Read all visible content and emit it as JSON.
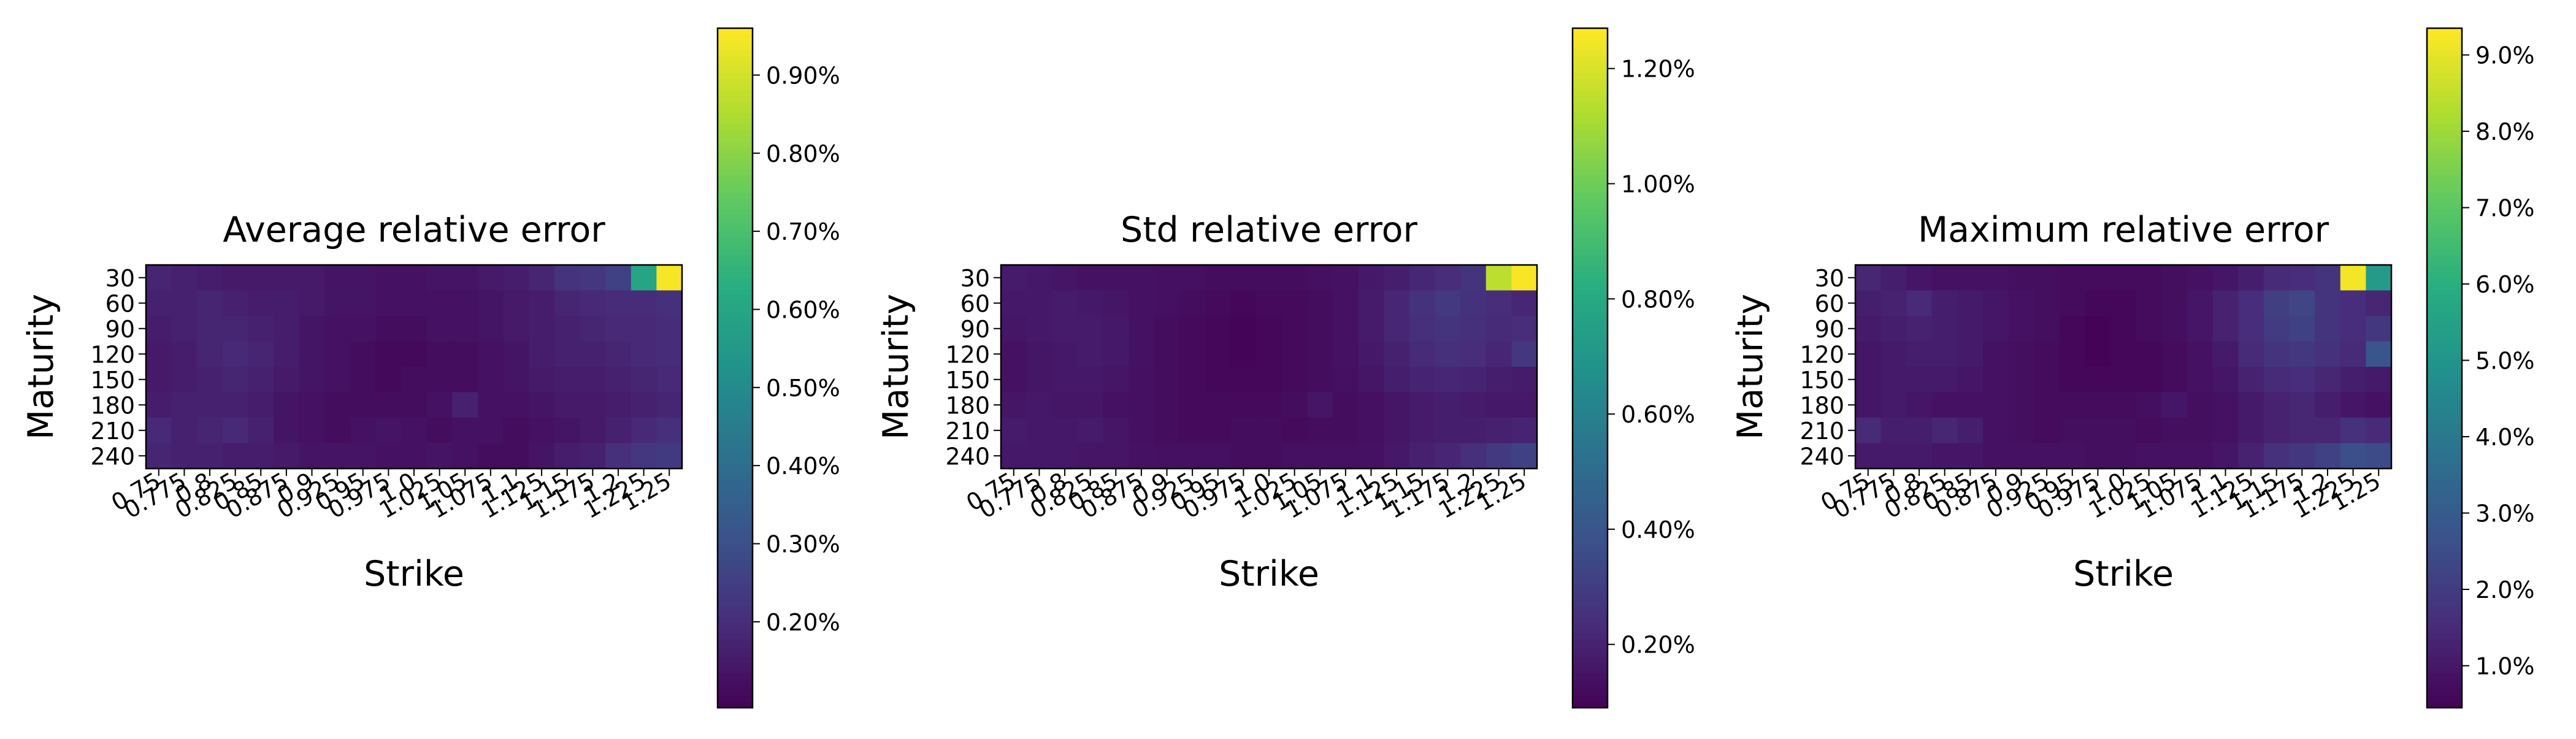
{
  "colormap": [
    "#440154",
    "#472c7a",
    "#3b518b",
    "#2c718e",
    "#21918c",
    "#28ae80",
    "#5ec962",
    "#addc30",
    "#fde725"
  ],
  "chart_data": [
    {
      "type": "heatmap",
      "title": "Average relative error",
      "xlabel": "Strike",
      "ylabel": "Maturity",
      "x": [
        "0.75",
        "0.775",
        "0.8",
        "0.825",
        "0.85",
        "0.875",
        "0.9",
        "0.925",
        "0.95",
        "0.975",
        "1.0",
        "1.025",
        "1.05",
        "1.075",
        "1.1",
        "1.125",
        "1.15",
        "1.175",
        "1.2",
        "1.225",
        "1.25"
      ],
      "y": [
        "30",
        "60",
        "90",
        "120",
        "150",
        "180",
        "210",
        "240"
      ],
      "values": [
        [
          0.18,
          0.17,
          0.16,
          0.15,
          0.15,
          0.15,
          0.15,
          0.14,
          0.14,
          0.13,
          0.13,
          0.14,
          0.14,
          0.15,
          0.16,
          0.18,
          0.22,
          0.23,
          0.26,
          0.6,
          0.95
        ],
        [
          0.17,
          0.17,
          0.18,
          0.17,
          0.16,
          0.16,
          0.15,
          0.14,
          0.14,
          0.13,
          0.13,
          0.13,
          0.13,
          0.14,
          0.15,
          0.16,
          0.18,
          0.19,
          0.2,
          0.2,
          0.21
        ],
        [
          0.16,
          0.17,
          0.18,
          0.18,
          0.17,
          0.16,
          0.14,
          0.13,
          0.13,
          0.12,
          0.12,
          0.13,
          0.13,
          0.14,
          0.15,
          0.16,
          0.17,
          0.18,
          0.19,
          0.19,
          0.2
        ],
        [
          0.15,
          0.16,
          0.18,
          0.19,
          0.18,
          0.16,
          0.14,
          0.13,
          0.12,
          0.11,
          0.11,
          0.12,
          0.12,
          0.13,
          0.14,
          0.16,
          0.17,
          0.17,
          0.18,
          0.19,
          0.2
        ],
        [
          0.15,
          0.16,
          0.17,
          0.18,
          0.17,
          0.15,
          0.14,
          0.13,
          0.12,
          0.11,
          0.12,
          0.12,
          0.12,
          0.13,
          0.14,
          0.15,
          0.16,
          0.16,
          0.17,
          0.18,
          0.19
        ],
        [
          0.16,
          0.17,
          0.17,
          0.17,
          0.16,
          0.14,
          0.13,
          0.12,
          0.12,
          0.12,
          0.12,
          0.13,
          0.17,
          0.13,
          0.13,
          0.14,
          0.15,
          0.15,
          0.16,
          0.17,
          0.18
        ],
        [
          0.19,
          0.17,
          0.18,
          0.19,
          0.17,
          0.14,
          0.13,
          0.12,
          0.13,
          0.14,
          0.13,
          0.12,
          0.13,
          0.13,
          0.12,
          0.13,
          0.14,
          0.15,
          0.17,
          0.19,
          0.21
        ],
        [
          0.18,
          0.17,
          0.17,
          0.16,
          0.16,
          0.15,
          0.14,
          0.14,
          0.14,
          0.13,
          0.13,
          0.14,
          0.13,
          0.12,
          0.12,
          0.14,
          0.16,
          0.17,
          0.21,
          0.23,
          0.24
        ]
      ],
      "vmin": 0.09,
      "vmax": 0.96,
      "colorbar_ticks": [
        "0.20%",
        "0.30%",
        "0.40%",
        "0.50%",
        "0.60%",
        "0.70%",
        "0.80%",
        "0.90%"
      ],
      "colorbar_tick_values": [
        0.2,
        0.3,
        0.4,
        0.5,
        0.6,
        0.7,
        0.8,
        0.9
      ]
    },
    {
      "type": "heatmap",
      "title": "Std relative error",
      "xlabel": "Strike",
      "ylabel": "Maturity",
      "x": [
        "0.75",
        "0.775",
        "0.8",
        "0.825",
        "0.85",
        "0.875",
        "0.9",
        "0.925",
        "0.95",
        "0.975",
        "1.0",
        "1.025",
        "1.05",
        "1.075",
        "1.1",
        "1.125",
        "1.15",
        "1.175",
        "1.2",
        "1.225",
        "1.25"
      ],
      "y": [
        "30",
        "60",
        "90",
        "120",
        "150",
        "180",
        "210",
        "240"
      ],
      "values": [
        [
          0.18,
          0.17,
          0.16,
          0.15,
          0.15,
          0.15,
          0.14,
          0.14,
          0.13,
          0.13,
          0.13,
          0.13,
          0.14,
          0.15,
          0.17,
          0.19,
          0.22,
          0.24,
          0.27,
          1.15,
          1.26
        ],
        [
          0.17,
          0.17,
          0.18,
          0.17,
          0.16,
          0.15,
          0.14,
          0.13,
          0.12,
          0.11,
          0.12,
          0.12,
          0.13,
          0.15,
          0.18,
          0.22,
          0.26,
          0.29,
          0.26,
          0.24,
          0.22
        ],
        [
          0.16,
          0.17,
          0.18,
          0.18,
          0.17,
          0.15,
          0.13,
          0.12,
          0.11,
          0.1,
          0.11,
          0.12,
          0.13,
          0.15,
          0.18,
          0.22,
          0.25,
          0.27,
          0.25,
          0.23,
          0.24
        ],
        [
          0.15,
          0.16,
          0.17,
          0.18,
          0.17,
          0.15,
          0.13,
          0.12,
          0.11,
          0.1,
          0.11,
          0.12,
          0.13,
          0.15,
          0.17,
          0.2,
          0.23,
          0.25,
          0.24,
          0.22,
          0.28
        ],
        [
          0.15,
          0.16,
          0.17,
          0.17,
          0.16,
          0.14,
          0.13,
          0.12,
          0.11,
          0.11,
          0.11,
          0.12,
          0.13,
          0.14,
          0.16,
          0.19,
          0.21,
          0.22,
          0.21,
          0.19,
          0.18
        ],
        [
          0.16,
          0.17,
          0.16,
          0.16,
          0.15,
          0.14,
          0.13,
          0.12,
          0.12,
          0.12,
          0.12,
          0.13,
          0.16,
          0.13,
          0.14,
          0.16,
          0.18,
          0.19,
          0.18,
          0.17,
          0.17
        ],
        [
          0.18,
          0.17,
          0.17,
          0.18,
          0.16,
          0.14,
          0.13,
          0.12,
          0.12,
          0.13,
          0.13,
          0.12,
          0.13,
          0.13,
          0.14,
          0.16,
          0.18,
          0.19,
          0.19,
          0.2,
          0.21
        ],
        [
          0.17,
          0.17,
          0.17,
          0.16,
          0.16,
          0.15,
          0.14,
          0.14,
          0.14,
          0.13,
          0.13,
          0.14,
          0.14,
          0.14,
          0.15,
          0.17,
          0.2,
          0.22,
          0.25,
          0.29,
          0.32
        ]
      ],
      "vmin": 0.09,
      "vmax": 1.27,
      "colorbar_ticks": [
        "0.20%",
        "0.40%",
        "0.60%",
        "0.80%",
        "1.00%",
        "1.20%"
      ],
      "colorbar_tick_values": [
        0.2,
        0.4,
        0.6,
        0.8,
        1.0,
        1.2
      ]
    },
    {
      "type": "heatmap",
      "title": "Maximum relative error",
      "xlabel": "Strike",
      "ylabel": "Maturity",
      "x": [
        "0.75",
        "0.775",
        "0.8",
        "0.825",
        "0.85",
        "0.875",
        "0.9",
        "0.925",
        "0.95",
        "0.975",
        "1.0",
        "1.025",
        "1.05",
        "1.075",
        "1.1",
        "1.125",
        "1.15",
        "1.175",
        "1.2",
        "1.225",
        "1.25"
      ],
      "y": [
        "30",
        "60",
        "90",
        "120",
        "150",
        "180",
        "210",
        "240"
      ],
      "values": [
        [
          1.4,
          1.2,
          1.0,
          0.9,
          0.9,
          0.9,
          0.8,
          0.8,
          0.7,
          0.7,
          0.7,
          0.7,
          0.8,
          0.9,
          1.0,
          1.2,
          1.5,
          1.6,
          1.8,
          9.2,
          5.3
        ],
        [
          1.2,
          1.3,
          1.5,
          1.2,
          1.1,
          1.0,
          0.9,
          0.8,
          0.7,
          0.6,
          0.6,
          0.7,
          0.8,
          1.0,
          1.3,
          1.6,
          2.1,
          2.3,
          1.8,
          1.6,
          1.4
        ],
        [
          1.1,
          1.2,
          1.3,
          1.2,
          1.1,
          1.0,
          0.9,
          0.8,
          0.6,
          0.5,
          0.6,
          0.7,
          0.8,
          1.0,
          1.3,
          1.6,
          2.0,
          2.2,
          1.8,
          1.6,
          1.9
        ],
        [
          1.0,
          1.1,
          1.2,
          1.2,
          1.1,
          0.9,
          0.8,
          0.7,
          0.6,
          0.5,
          0.6,
          0.6,
          0.7,
          0.9,
          1.1,
          1.5,
          1.8,
          1.9,
          1.7,
          1.5,
          2.8
        ],
        [
          1.0,
          1.1,
          1.1,
          1.1,
          1.0,
          0.9,
          0.8,
          0.7,
          0.6,
          0.6,
          0.6,
          0.6,
          0.7,
          0.9,
          1.0,
          1.3,
          1.5,
          1.6,
          1.4,
          1.2,
          1.1
        ],
        [
          1.0,
          1.1,
          1.0,
          0.9,
          0.9,
          0.9,
          0.8,
          0.7,
          0.7,
          0.7,
          0.7,
          0.8,
          1.0,
          0.8,
          0.9,
          1.1,
          1.3,
          1.4,
          1.2,
          1.0,
          0.9
        ],
        [
          1.5,
          1.2,
          1.2,
          1.4,
          1.2,
          0.9,
          0.8,
          0.7,
          0.8,
          0.8,
          0.8,
          0.7,
          0.8,
          0.8,
          0.9,
          1.1,
          1.3,
          1.4,
          1.4,
          1.7,
          1.5
        ],
        [
          1.1,
          1.1,
          1.1,
          1.0,
          1.0,
          0.9,
          0.9,
          0.9,
          0.9,
          0.8,
          0.8,
          0.9,
          0.9,
          0.9,
          1.0,
          1.3,
          1.7,
          1.9,
          2.2,
          2.6,
          2.5
        ]
      ],
      "vmin": 0.45,
      "vmax": 9.35,
      "colorbar_ticks": [
        "1.0%",
        "2.0%",
        "3.0%",
        "4.0%",
        "5.0%",
        "6.0%",
        "7.0%",
        "8.0%",
        "9.0%"
      ],
      "colorbar_tick_values": [
        1,
        2,
        3,
        4,
        5,
        6,
        7,
        8,
        9
      ]
    }
  ]
}
